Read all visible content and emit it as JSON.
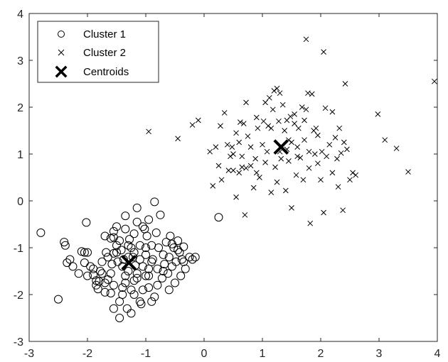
{
  "chart_data": {
    "type": "scatter",
    "title": "",
    "xlabel": "",
    "ylabel": "",
    "xlim": [
      -3,
      4
    ],
    "ylim": [
      -3,
      4
    ],
    "xticks": [
      -3,
      -2,
      -1,
      0,
      1,
      2,
      3,
      4
    ],
    "yticks": [
      -3,
      -2,
      -1,
      0,
      1,
      2,
      3,
      4
    ],
    "grid": false,
    "legend_position": "top-left",
    "series": [
      {
        "name": "Cluster 1",
        "marker": "circle",
        "color": "#000000",
        "points": [
          [
            -2.8,
            -0.68
          ],
          [
            -2.5,
            -2.1
          ],
          [
            -2.4,
            -0.88
          ],
          [
            -2.38,
            -0.95
          ],
          [
            -2.35,
            -1.32
          ],
          [
            -2.25,
            -1.4
          ],
          [
            -2.1,
            -1.08
          ],
          [
            -2.05,
            -1.1
          ],
          [
            -2.05,
            -1.32
          ],
          [
            -2.0,
            -1.1
          ],
          [
            -2.02,
            -0.46
          ],
          [
            -1.95,
            -1.4
          ],
          [
            -1.9,
            -1.58
          ],
          [
            -1.85,
            -1.8
          ],
          [
            -1.82,
            -1.88
          ],
          [
            -1.8,
            -1.72
          ],
          [
            -1.78,
            -1.5
          ],
          [
            -1.75,
            -1.3
          ],
          [
            -1.7,
            -1.75
          ],
          [
            -1.68,
            -1.1
          ],
          [
            -1.65,
            -1.68
          ],
          [
            -1.6,
            -1.97
          ],
          [
            -1.58,
            -1.35
          ],
          [
            -1.55,
            -1.12
          ],
          [
            -1.6,
            -0.8
          ],
          [
            -1.55,
            -0.78
          ],
          [
            -1.5,
            -0.55
          ],
          [
            -1.48,
            -1.3
          ],
          [
            -1.45,
            -0.85
          ],
          [
            -1.4,
            -2.0
          ],
          [
            -1.42,
            -1.05
          ],
          [
            -1.38,
            -1.25
          ],
          [
            -1.35,
            -0.32
          ],
          [
            -1.35,
            -1.6
          ],
          [
            -1.32,
            -2.3
          ],
          [
            -1.3,
            -1.5
          ],
          [
            -1.28,
            -0.82
          ],
          [
            -1.25,
            -1.0
          ],
          [
            -1.22,
            -1.2
          ],
          [
            -1.2,
            -1.7
          ],
          [
            -1.18,
            -1.38
          ],
          [
            -1.15,
            -0.15
          ],
          [
            -1.15,
            -1.55
          ],
          [
            -1.1,
            -0.95
          ],
          [
            -1.08,
            -2.2
          ],
          [
            -1.05,
            -1.4
          ],
          [
            -1.02,
            -0.6
          ],
          [
            -1.0,
            -1.15
          ],
          [
            -0.98,
            -0.75
          ],
          [
            -0.95,
            -1.85
          ],
          [
            -0.95,
            -1.6
          ],
          [
            -0.9,
            -0.95
          ],
          [
            -0.88,
            -1.25
          ],
          [
            -0.85,
            -2.05
          ],
          [
            -0.82,
            -0.68
          ],
          [
            -0.8,
            -1.45
          ],
          [
            -0.78,
            -1.0
          ],
          [
            -0.75,
            -0.3
          ],
          [
            -0.72,
            -1.65
          ],
          [
            -0.7,
            -1.15
          ],
          [
            -0.68,
            -1.35
          ],
          [
            -0.65,
            -0.88
          ],
          [
            -0.62,
            -1.55
          ],
          [
            -0.6,
            -1.2
          ],
          [
            -0.58,
            -0.75
          ],
          [
            -0.55,
            -1.4
          ],
          [
            -0.52,
            -1.0
          ],
          [
            -0.5,
            -1.75
          ],
          [
            -0.48,
            -1.3
          ],
          [
            -0.45,
            -0.85
          ],
          [
            -0.42,
            -1.1
          ],
          [
            -0.4,
            -1.6
          ],
          [
            -0.38,
            -1.25
          ],
          [
            -0.35,
            -0.98
          ],
          [
            -0.32,
            -1.45
          ],
          [
            -0.85,
            -0.02
          ],
          [
            -0.55,
            -0.92
          ],
          [
            -0.45,
            -1.05
          ],
          [
            -0.35,
            -1.3
          ],
          [
            -0.25,
            -1.2
          ],
          [
            -0.2,
            -1.25
          ],
          [
            -0.15,
            -1.2
          ],
          [
            0.25,
            -0.35
          ],
          [
            -1.55,
            -2.3
          ],
          [
            -1.45,
            -2.5
          ],
          [
            -1.65,
            -1.2
          ],
          [
            -1.75,
            -1.55
          ],
          [
            -2.15,
            -1.55
          ],
          [
            -1.9,
            -1.45
          ],
          [
            -1.35,
            -1.75
          ],
          [
            -1.25,
            -1.9
          ],
          [
            -1.15,
            -1.65
          ],
          [
            -1.05,
            -1.9
          ],
          [
            -0.95,
            -1.45
          ],
          [
            -0.9,
            -1.3
          ],
          [
            -1.2,
            -1.1
          ],
          [
            -1.1,
            -1.25
          ],
          [
            -1.0,
            -1.0
          ],
          [
            -1.4,
            -1.4
          ],
          [
            -1.3,
            -1.2
          ],
          [
            -1.5,
            -1.1
          ],
          [
            -1.6,
            -1.55
          ],
          [
            -1.7,
            -1.95
          ],
          [
            -1.85,
            -1.7
          ],
          [
            -2.0,
            -1.6
          ],
          [
            -2.3,
            -1.25
          ],
          [
            -1.2,
            -2.0
          ],
          [
            -1.4,
            -1.85
          ],
          [
            -1.0,
            -1.6
          ],
          [
            -0.8,
            -1.8
          ],
          [
            -0.7,
            -1.5
          ],
          [
            -0.6,
            -1.9
          ],
          [
            -0.9,
            -2.15
          ],
          [
            -1.1,
            -2.15
          ],
          [
            -1.25,
            -2.4
          ],
          [
            -1.45,
            -2.15
          ],
          [
            -1.55,
            -1.8
          ],
          [
            -1.7,
            -0.75
          ],
          [
            -1.55,
            -0.65
          ],
          [
            -1.35,
            -0.6
          ],
          [
            -1.2,
            -0.7
          ],
          [
            -1.05,
            -0.55
          ],
          [
            -0.95,
            -0.4
          ],
          [
            -1.15,
            -0.45
          ],
          [
            -1.3,
            -0.95
          ],
          [
            -1.5,
            -0.95
          ]
        ]
      },
      {
        "name": "Cluster 2",
        "marker": "x",
        "color": "#000000",
        "points": [
          [
            -0.95,
            1.48
          ],
          [
            -0.45,
            1.33
          ],
          [
            -0.2,
            1.62
          ],
          [
            -0.1,
            1.72
          ],
          [
            0.1,
            1.05
          ],
          [
            0.15,
            0.32
          ],
          [
            0.2,
            1.15
          ],
          [
            0.25,
            0.75
          ],
          [
            0.28,
            1.6
          ],
          [
            0.35,
            1.88
          ],
          [
            0.4,
            1.2
          ],
          [
            0.42,
            0.65
          ],
          [
            0.45,
            0.95
          ],
          [
            0.48,
            1.15
          ],
          [
            0.5,
            1.0
          ],
          [
            0.55,
            0.08
          ],
          [
            0.55,
            1.45
          ],
          [
            0.6,
            0.6
          ],
          [
            0.62,
            1.68
          ],
          [
            0.65,
            0.72
          ],
          [
            0.68,
            1.65
          ],
          [
            0.7,
            -0.3
          ],
          [
            0.72,
            2.1
          ],
          [
            0.75,
            1.38
          ],
          [
            0.8,
            1.15
          ],
          [
            0.85,
            0.28
          ],
          [
            0.88,
            0.9
          ],
          [
            0.9,
            1.78
          ],
          [
            0.92,
            1.55
          ],
          [
            0.95,
            0.5
          ],
          [
            1.0,
            1.2
          ],
          [
            1.05,
            0.82
          ],
          [
            1.08,
            1.05
          ],
          [
            1.1,
            1.6
          ],
          [
            1.12,
            2.2
          ],
          [
            1.15,
            0.18
          ],
          [
            1.18,
            1.95
          ],
          [
            1.2,
            2.35
          ],
          [
            1.22,
            0.72
          ],
          [
            1.25,
            0.4
          ],
          [
            1.25,
            2.4
          ],
          [
            1.28,
            1.7
          ],
          [
            1.3,
            1.05
          ],
          [
            1.32,
            0.9
          ],
          [
            1.35,
            2.05
          ],
          [
            1.38,
            1.5
          ],
          [
            1.4,
            0.22
          ],
          [
            1.42,
            1.72
          ],
          [
            1.45,
            0.85
          ],
          [
            1.48,
            1.8
          ],
          [
            1.5,
            1.25
          ],
          [
            1.5,
            -0.15
          ],
          [
            1.55,
            1.85
          ],
          [
            1.58,
            0.55
          ],
          [
            1.6,
            1.15
          ],
          [
            1.62,
            1.55
          ],
          [
            1.65,
            0.92
          ],
          [
            1.68,
            2.0
          ],
          [
            1.7,
            0.45
          ],
          [
            1.72,
            1.3
          ],
          [
            1.75,
            1.95
          ],
          [
            1.75,
            3.45
          ],
          [
            1.78,
            2.3
          ],
          [
            1.8,
            0.7
          ],
          [
            1.8,
            1.05
          ],
          [
            1.82,
            -0.48
          ],
          [
            1.85,
            2.28
          ],
          [
            1.9,
            1.0
          ],
          [
            1.92,
            1.55
          ],
          [
            1.95,
            0.8
          ],
          [
            2.0,
            0.45
          ],
          [
            2.02,
            1.05
          ],
          [
            2.05,
            -0.25
          ],
          [
            2.05,
            3.18
          ],
          [
            2.08,
            1.98
          ],
          [
            2.1,
            0.95
          ],
          [
            2.15,
            1.2
          ],
          [
            2.2,
            0.6
          ],
          [
            2.25,
            1.35
          ],
          [
            2.3,
            0.3
          ],
          [
            2.32,
            1.55
          ],
          [
            2.35,
            1.02
          ],
          [
            2.38,
            -0.2
          ],
          [
            2.4,
            1.25
          ],
          [
            2.42,
            2.5
          ],
          [
            2.45,
            1.1
          ],
          [
            2.5,
            0.45
          ],
          [
            2.55,
            0.6
          ],
          [
            2.6,
            0.55
          ],
          [
            2.98,
            1.85
          ],
          [
            3.1,
            1.3
          ],
          [
            3.3,
            1.12
          ],
          [
            3.5,
            0.62
          ],
          [
            3.95,
            2.55
          ],
          [
            0.5,
            0.65
          ],
          [
            0.8,
            0.75
          ],
          [
            1.05,
            2.1
          ],
          [
            1.15,
            1.55
          ],
          [
            0.3,
            0.45
          ],
          [
            0.6,
            1.25
          ],
          [
            1.45,
            1.3
          ],
          [
            1.95,
            1.4
          ],
          [
            2.2,
            1.9
          ],
          [
            1.3,
            2.3
          ],
          [
            0.65,
            0.95
          ],
          [
            1.6,
            0.95
          ],
          [
            1.88,
            1.5
          ],
          [
            0.9,
            0.6
          ],
          [
            2.28,
            0.9
          ],
          [
            1.55,
            1.65
          ],
          [
            0.72,
            0.7
          ],
          [
            1.42,
            1.1
          ],
          [
            1.72,
            1.72
          ],
          [
            1.02,
            1.7
          ]
        ]
      },
      {
        "name": "Centroids",
        "marker": "x-bold",
        "color": "#000000",
        "points": [
          [
            -1.29,
            -1.32
          ],
          [
            1.32,
            1.15
          ]
        ]
      }
    ]
  }
}
